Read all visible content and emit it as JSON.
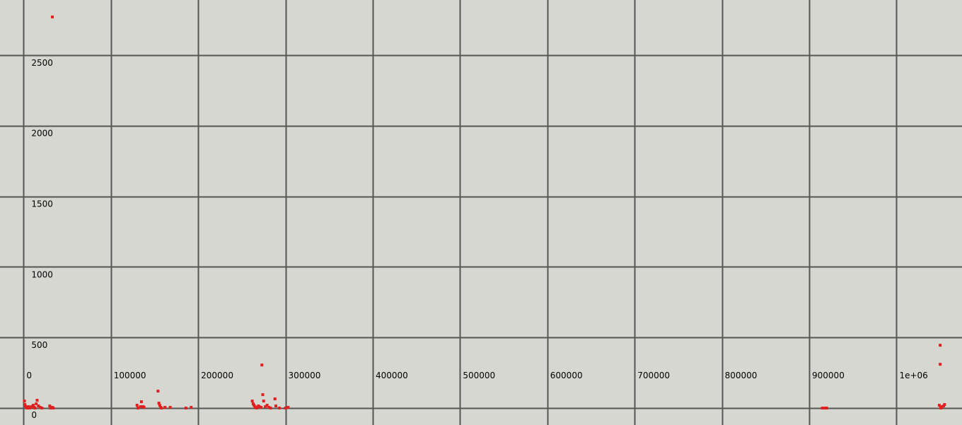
{
  "chart_data": {
    "type": "scatter",
    "title": "",
    "xlabel": "",
    "ylabel": "",
    "grid": true,
    "legend": "none",
    "xlim": [
      -27000,
      1075000
    ],
    "ylim": [
      -120,
      2890
    ],
    "x_ticks": [
      {
        "value": 0,
        "label": "0"
      },
      {
        "value": 100000,
        "label": "100000"
      },
      {
        "value": 200000,
        "label": "200000"
      },
      {
        "value": 300000,
        "label": "300000"
      },
      {
        "value": 400000,
        "label": "400000"
      },
      {
        "value": 500000,
        "label": "500000"
      },
      {
        "value": 600000,
        "label": "600000"
      },
      {
        "value": 700000,
        "label": "700000"
      },
      {
        "value": 800000,
        "label": "800000"
      },
      {
        "value": 900000,
        "label": "900000"
      },
      {
        "value": 1000000,
        "label": "1e+06"
      }
    ],
    "y_ticks": [
      {
        "value": 0,
        "label": "0"
      },
      {
        "value": 500,
        "label": "500"
      },
      {
        "value": 1000,
        "label": "1000"
      },
      {
        "value": 1500,
        "label": "1500"
      },
      {
        "value": 2000,
        "label": "2000"
      },
      {
        "value": 2500,
        "label": "2500"
      }
    ],
    "colors": {
      "background": "#d5d7d0",
      "grid": "#555555",
      "marker": "#e02020",
      "text": "#000000"
    },
    "series": [
      {
        "marker": "square",
        "points": [
          [
            33000,
            2770
          ],
          [
            1000,
            50
          ],
          [
            1500,
            25
          ],
          [
            2000,
            15
          ],
          [
            3000,
            5
          ],
          [
            4000,
            0
          ],
          [
            5500,
            10
          ],
          [
            7000,
            0
          ],
          [
            9000,
            10
          ],
          [
            11000,
            20
          ],
          [
            12000,
            5
          ],
          [
            13000,
            0
          ],
          [
            14500,
            30
          ],
          [
            15500,
            55
          ],
          [
            17000,
            15
          ],
          [
            19000,
            5
          ],
          [
            21000,
            0
          ],
          [
            30000,
            15
          ],
          [
            31000,
            0
          ],
          [
            33000,
            5
          ],
          [
            34000,
            0
          ],
          [
            130000,
            20
          ],
          [
            131000,
            0
          ],
          [
            134000,
            10
          ],
          [
            135000,
            45
          ],
          [
            137000,
            10
          ],
          [
            138000,
            5
          ],
          [
            154000,
            120
          ],
          [
            155000,
            35
          ],
          [
            156000,
            20
          ],
          [
            157000,
            5
          ],
          [
            158000,
            0
          ],
          [
            162000,
            5
          ],
          [
            168000,
            5
          ],
          [
            186000,
            0
          ],
          [
            192000,
            5
          ],
          [
            262000,
            50
          ],
          [
            263000,
            30
          ],
          [
            264000,
            20
          ],
          [
            265000,
            10
          ],
          [
            266000,
            5
          ],
          [
            267000,
            0
          ],
          [
            269000,
            15
          ],
          [
            270000,
            10
          ],
          [
            272000,
            5
          ],
          [
            273000,
            305
          ],
          [
            274000,
            95
          ],
          [
            275000,
            50
          ],
          [
            277000,
            10
          ],
          [
            279000,
            20
          ],
          [
            281000,
            5
          ],
          [
            283000,
            0
          ],
          [
            288000,
            65
          ],
          [
            289000,
            15
          ],
          [
            293000,
            0
          ],
          [
            300000,
            0
          ],
          [
            303000,
            5
          ],
          [
            915000,
            0
          ],
          [
            918000,
            0
          ],
          [
            920000,
            0
          ],
          [
            1050000,
            445
          ],
          [
            1050000,
            310
          ],
          [
            1049000,
            20
          ],
          [
            1050500,
            5
          ],
          [
            1051000,
            0
          ],
          [
            1052000,
            10
          ],
          [
            1054000,
            15
          ],
          [
            1055000,
            25
          ]
        ]
      }
    ]
  }
}
